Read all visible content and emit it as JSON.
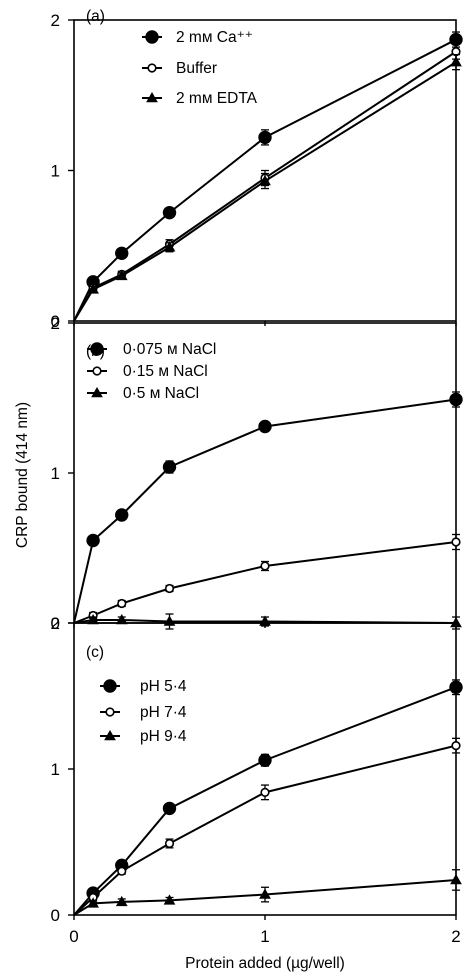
{
  "figure": {
    "ylabel": "CRP bound (414 nm)",
    "xlabel": "Protein added (µg/well)",
    "colors": {
      "ink": "#000000",
      "open_fill": "#ffffff"
    }
  },
  "chart_data": [
    {
      "type": "line",
      "panel_label": "(a)",
      "x": [
        0,
        0.1,
        0.25,
        0.5,
        1,
        2
      ],
      "xlim": [
        0,
        2
      ],
      "xtick_labels": [
        "0",
        "1",
        "2"
      ],
      "ylim": [
        0,
        2
      ],
      "ytick_labels": [
        "0",
        "1",
        "2"
      ],
      "series": [
        {
          "name": "2 mм Ca⁺⁺",
          "marker": "filled-circle",
          "values": [
            0,
            0.26,
            0.45,
            0.72,
            1.22,
            1.87
          ],
          "errors": [
            0,
            0.02,
            0.02,
            0.03,
            0.05,
            0.05
          ]
        },
        {
          "name": "Buffer",
          "marker": "open-circle",
          "values": [
            0,
            0.22,
            0.31,
            0.51,
            0.95,
            1.79
          ],
          "errors": [
            0,
            0.02,
            0.02,
            0.03,
            0.05,
            0.05
          ]
        },
        {
          "name": "2 mм EDTA",
          "marker": "filled-triangle",
          "values": [
            0,
            0.21,
            0.3,
            0.49,
            0.93,
            1.72
          ],
          "errors": [
            0,
            0.02,
            0.02,
            0.03,
            0.05,
            0.05
          ]
        }
      ]
    },
    {
      "type": "line",
      "panel_label": "(b)",
      "x": [
        0,
        0.1,
        0.25,
        0.5,
        1,
        2
      ],
      "xlim": [
        0,
        2
      ],
      "xtick_labels": [
        "0",
        "1",
        "2"
      ],
      "ylim": [
        0,
        2
      ],
      "ytick_labels": [
        "0",
        "1",
        "2"
      ],
      "series": [
        {
          "name": "0·075 м NaCl",
          "marker": "filled-circle",
          "values": [
            0,
            0.55,
            0.72,
            1.04,
            1.31,
            1.49
          ],
          "errors": [
            0,
            0.03,
            0.03,
            0.04,
            0.03,
            0.05
          ]
        },
        {
          "name": "0·15 м NaCl",
          "marker": "open-circle",
          "values": [
            0,
            0.05,
            0.13,
            0.23,
            0.38,
            0.54
          ],
          "errors": [
            0,
            0.02,
            0.02,
            0.02,
            0.03,
            0.05
          ]
        },
        {
          "name": "0·5 м NaCl",
          "marker": "filled-triangle",
          "values": [
            0,
            0.02,
            0.02,
            0.01,
            0.01,
            0.0
          ],
          "errors": [
            0,
            0.02,
            0.02,
            0.05,
            0.03,
            0.04
          ]
        }
      ]
    },
    {
      "type": "line",
      "panel_label": "(c)",
      "x": [
        0,
        0.1,
        0.25,
        0.5,
        1,
        2
      ],
      "xlim": [
        0,
        2
      ],
      "xtick_labels": [
        "0",
        "1",
        "2"
      ],
      "ylim": [
        0,
        2
      ],
      "ytick_labels": [
        "0",
        "1",
        "2"
      ],
      "series": [
        {
          "name": "pH 5·4",
          "marker": "filled-circle",
          "values": [
            0,
            0.15,
            0.34,
            0.73,
            1.06,
            1.56
          ],
          "errors": [
            0,
            0.02,
            0.02,
            0.03,
            0.04,
            0.05
          ]
        },
        {
          "name": "pH 7·4",
          "marker": "open-circle",
          "values": [
            0,
            0.12,
            0.3,
            0.49,
            0.84,
            1.16
          ],
          "errors": [
            0,
            0.02,
            0.02,
            0.03,
            0.05,
            0.05
          ]
        },
        {
          "name": "pH 9·4",
          "marker": "filled-triangle",
          "values": [
            0,
            0.08,
            0.09,
            0.1,
            0.14,
            0.24
          ],
          "errors": [
            0,
            0.01,
            0.02,
            0.02,
            0.05,
            0.07
          ]
        }
      ]
    }
  ]
}
